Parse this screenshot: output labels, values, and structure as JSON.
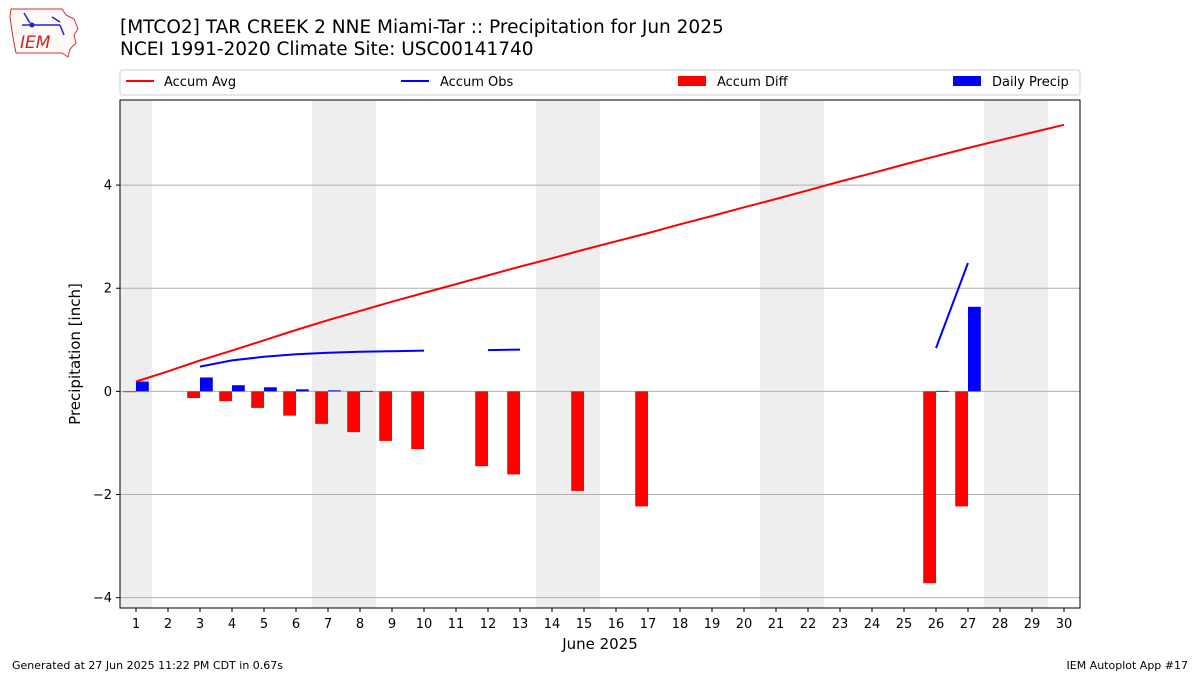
{
  "title_line1": "[MTCO2] TAR CREEK 2 NNE Miami-Tar :: Precipitation for Jun 2025",
  "title_line2": "NCEI 1991-2020 Climate Site: USC00141740",
  "logo_text": "IEM",
  "footer_left": "Generated at 27 Jun 2025 11:22 PM CDT in 0.67s",
  "footer_right": "IEM Autoplot App #17",
  "colors": {
    "avg": "#ff0000",
    "obs": "#0000ff",
    "diff": "#ff0000",
    "daily": "#0000ff",
    "weekend": "#eeeeee",
    "grid": "#b0b0b0"
  },
  "chart_data": {
    "type": "bar",
    "xlabel": "June 2025",
    "ylabel": "Precipitation [inch]",
    "xlim": [
      0.5,
      30.5
    ],
    "ylim": [
      -4.2,
      5.65
    ],
    "x_ticks": [
      "1",
      "2",
      "3",
      "4",
      "5",
      "6",
      "7",
      "8",
      "9",
      "10",
      "11",
      "12",
      "13",
      "14",
      "15",
      "16",
      "17",
      "18",
      "19",
      "20",
      "21",
      "22",
      "23",
      "24",
      "25",
      "26",
      "27",
      "28",
      "29",
      "30"
    ],
    "y_ticks": [
      -4,
      -2,
      0,
      2,
      4
    ],
    "y_tick_labels": [
      "−4",
      "−2",
      "0",
      "2",
      "4"
    ],
    "grid": "horizontal",
    "legend_position": "top",
    "weekend_days": [
      1,
      7,
      8,
      14,
      15,
      21,
      22,
      28,
      29
    ],
    "legend": [
      "Accum Avg",
      "Accum Obs",
      "Accum Diff",
      "Daily Precip"
    ],
    "series": [
      {
        "name": "Accum Avg",
        "kind": "line",
        "x": [
          1,
          2,
          3,
          4,
          5,
          6,
          7,
          8,
          9,
          10,
          11,
          12,
          13,
          14,
          15,
          16,
          17,
          18,
          19,
          20,
          21,
          22,
          23,
          24,
          25,
          26,
          27,
          28,
          29,
          30
        ],
        "values": [
          0.19,
          0.39,
          0.6,
          0.79,
          0.99,
          1.19,
          1.38,
          1.56,
          1.74,
          1.91,
          2.08,
          2.25,
          2.42,
          2.58,
          2.75,
          2.91,
          3.07,
          3.24,
          3.4,
          3.57,
          3.73,
          3.9,
          4.07,
          4.23,
          4.4,
          4.56,
          4.72,
          4.87,
          5.02,
          5.17
        ]
      },
      {
        "name": "Accum Obs",
        "kind": "line",
        "x": [
          1,
          2,
          3,
          4,
          5,
          6,
          7,
          8,
          9,
          10,
          11,
          12,
          13,
          14,
          15,
          16,
          17,
          18,
          19,
          20,
          21,
          22,
          23,
          24,
          25,
          26,
          27,
          28,
          29,
          30
        ],
        "values": [
          null,
          null,
          0.48,
          0.6,
          0.67,
          0.72,
          0.75,
          0.77,
          0.78,
          0.79,
          null,
          0.8,
          0.81,
          null,
          null,
          null,
          null,
          null,
          null,
          null,
          null,
          null,
          null,
          null,
          null,
          0.84,
          2.49,
          null,
          null,
          null
        ]
      },
      {
        "name": "Accum Diff",
        "kind": "bar",
        "x": [
          1,
          2,
          3,
          4,
          5,
          6,
          7,
          8,
          9,
          10,
          11,
          12,
          13,
          14,
          15,
          16,
          17,
          18,
          19,
          20,
          21,
          22,
          23,
          24,
          25,
          26,
          27,
          28,
          29,
          30
        ],
        "values": [
          0,
          null,
          -0.13,
          -0.19,
          -0.32,
          -0.47,
          -0.63,
          -0.79,
          -0.96,
          -1.12,
          null,
          -1.45,
          -1.61,
          null,
          -1.93,
          null,
          -2.23,
          null,
          null,
          null,
          null,
          null,
          null,
          null,
          null,
          -3.72,
          -2.23,
          null,
          null,
          null
        ]
      },
      {
        "name": "Daily Precip",
        "kind": "bar",
        "x": [
          1,
          2,
          3,
          4,
          5,
          6,
          7,
          8,
          9,
          10,
          11,
          12,
          13,
          14,
          15,
          16,
          17,
          18,
          19,
          20,
          21,
          22,
          23,
          24,
          25,
          26,
          27,
          28,
          29,
          30
        ],
        "values": [
          0.19,
          null,
          0.27,
          0.12,
          0.08,
          0.04,
          0.02,
          0.01,
          null,
          null,
          null,
          null,
          null,
          null,
          null,
          null,
          null,
          null,
          null,
          null,
          null,
          null,
          null,
          null,
          null,
          0.01,
          1.64,
          null,
          null,
          null
        ]
      }
    ]
  }
}
